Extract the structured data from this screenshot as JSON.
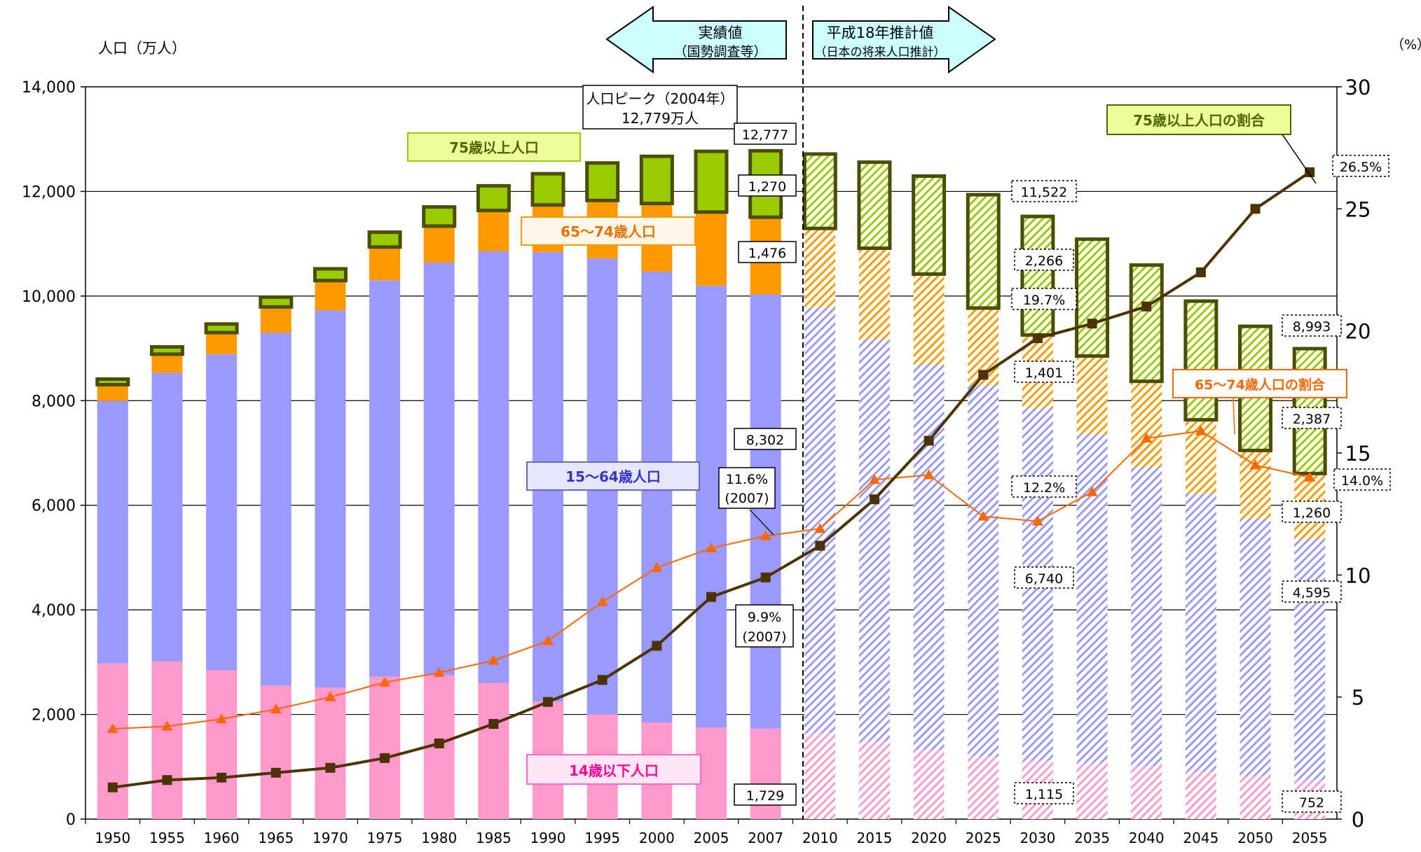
{
  "chart_data": {
    "type": "bar",
    "ylabel_left": "人口（万人）",
    "ylabel_right": "（%）",
    "left_axis": {
      "range": [
        0,
        14000
      ],
      "ticks": [
        0,
        2000,
        4000,
        6000,
        8000,
        10000,
        12000,
        14000
      ],
      "tick_labels": [
        "0",
        "2,000",
        "4,000",
        "6,000",
        "8,000",
        "10,000",
        "12,000",
        "14,000"
      ]
    },
    "right_axis": {
      "range": [
        0,
        30
      ],
      "ticks": [
        0,
        5,
        10,
        15,
        20,
        25,
        30
      ],
      "tick_labels": [
        "0",
        "5",
        "10",
        "15",
        "20",
        "25",
        "30"
      ]
    },
    "grid": true,
    "categories": [
      "1950",
      "1955",
      "1960",
      "1965",
      "1970",
      "1975",
      "1980",
      "1985",
      "1990",
      "1995",
      "2000",
      "2005",
      "2007",
      "2010",
      "2015",
      "2020",
      "2025",
      "2030",
      "2035",
      "2040",
      "2045",
      "2050",
      "2055"
    ],
    "projected_from_index": 13,
    "series": [
      {
        "name": "14歳以下人口",
        "color": "#ff99cc",
        "values": [
          2979,
          3012,
          2843,
          2553,
          2515,
          2722,
          2751,
          2603,
          2249,
          2001,
          1847,
          1752,
          1729,
          1648,
          1484,
          1324,
          1195,
          1115,
          1068,
          1019,
          900,
          820,
          752
        ]
      },
      {
        "name": "15～64歳人口",
        "color": "#9999ff",
        "values": [
          5017,
          5517,
          6047,
          6744,
          7212,
          7581,
          7883,
          8251,
          8590,
          8717,
          8622,
          8442,
          8302,
          8128,
          7681,
          7363,
          7096,
          6740,
          6292,
          5706,
          5321,
          4930,
          4595
        ]
      },
      {
        "name": "65～74歳人口",
        "color": "#ff9900",
        "values": [
          310,
          360,
          411,
          495,
          569,
          634,
          703,
          782,
          902,
          1109,
          1301,
          1412,
          1476,
          1517,
          1749,
          1733,
          1479,
          1401,
          1493,
          1644,
          1413,
          1298,
          1260
        ]
      },
      {
        "name": "75歳以上人口",
        "color": "#99cc00",
        "values": [
          106,
          139,
          164,
          187,
          224,
          284,
          366,
          471,
          597,
          717,
          901,
          1160,
          1270,
          1422,
          1645,
          1873,
          2167,
          2266,
          2234,
          2223,
          2269,
          2373,
          2387
        ]
      }
    ],
    "line_series": [
      {
        "name": "65～74歳人口の割合",
        "color": "#ff6600",
        "marker": "triangle",
        "values": [
          3.7,
          3.8,
          4.1,
          4.5,
          5.0,
          5.6,
          6.0,
          6.5,
          7.3,
          8.9,
          10.3,
          11.1,
          11.6,
          11.9,
          13.9,
          14.1,
          12.4,
          12.2,
          13.4,
          15.6,
          15.9,
          14.5,
          14.0
        ]
      },
      {
        "name": "75歳以上人口の割合",
        "color": "#4d3300",
        "marker": "square",
        "values": [
          1.3,
          1.6,
          1.7,
          1.9,
          2.1,
          2.5,
          3.1,
          3.9,
          4.8,
          5.7,
          7.1,
          9.1,
          9.9,
          11.2,
          13.1,
          15.5,
          18.2,
          19.7,
          20.3,
          21.0,
          22.4,
          25.0,
          26.5
        ]
      }
    ],
    "value_labels": {
      "total_2007": "12,777",
      "s75_2007": "1,270",
      "s6574_2007": "1,476",
      "s1564_2007": "8,302",
      "s14_2007": "1,729",
      "total_2030": "11,522",
      "s75_2030": "2,266",
      "s6574_2030": "1,401",
      "s1564_2030": "6,740",
      "s14_2030": "1,115",
      "total_2055": "8,993",
      "s75_2055": "2,387",
      "s6574_2055": "1,260",
      "s1564_2055": "4,595",
      "s14_2055": "752",
      "p75_2030": "19.7%",
      "p6574_2030": "12.2%",
      "p75_2055": "26.5%",
      "p6574_2055": "14.0%",
      "p6574_2007_a": "11.6%",
      "p6574_2007_b": "(2007)",
      "p75_2007_a": "9.9%",
      "p75_2007_b": "(2007)"
    },
    "annotations": {
      "actual_line1": "実績値",
      "actual_line2": "（国勢調査等）",
      "projected_line1": "平成18年推計値",
      "projected_line2": "（日本の将来人口推計）",
      "peak_line1": "人口ピーク（2004年）",
      "peak_line2": "12,779万人"
    }
  }
}
